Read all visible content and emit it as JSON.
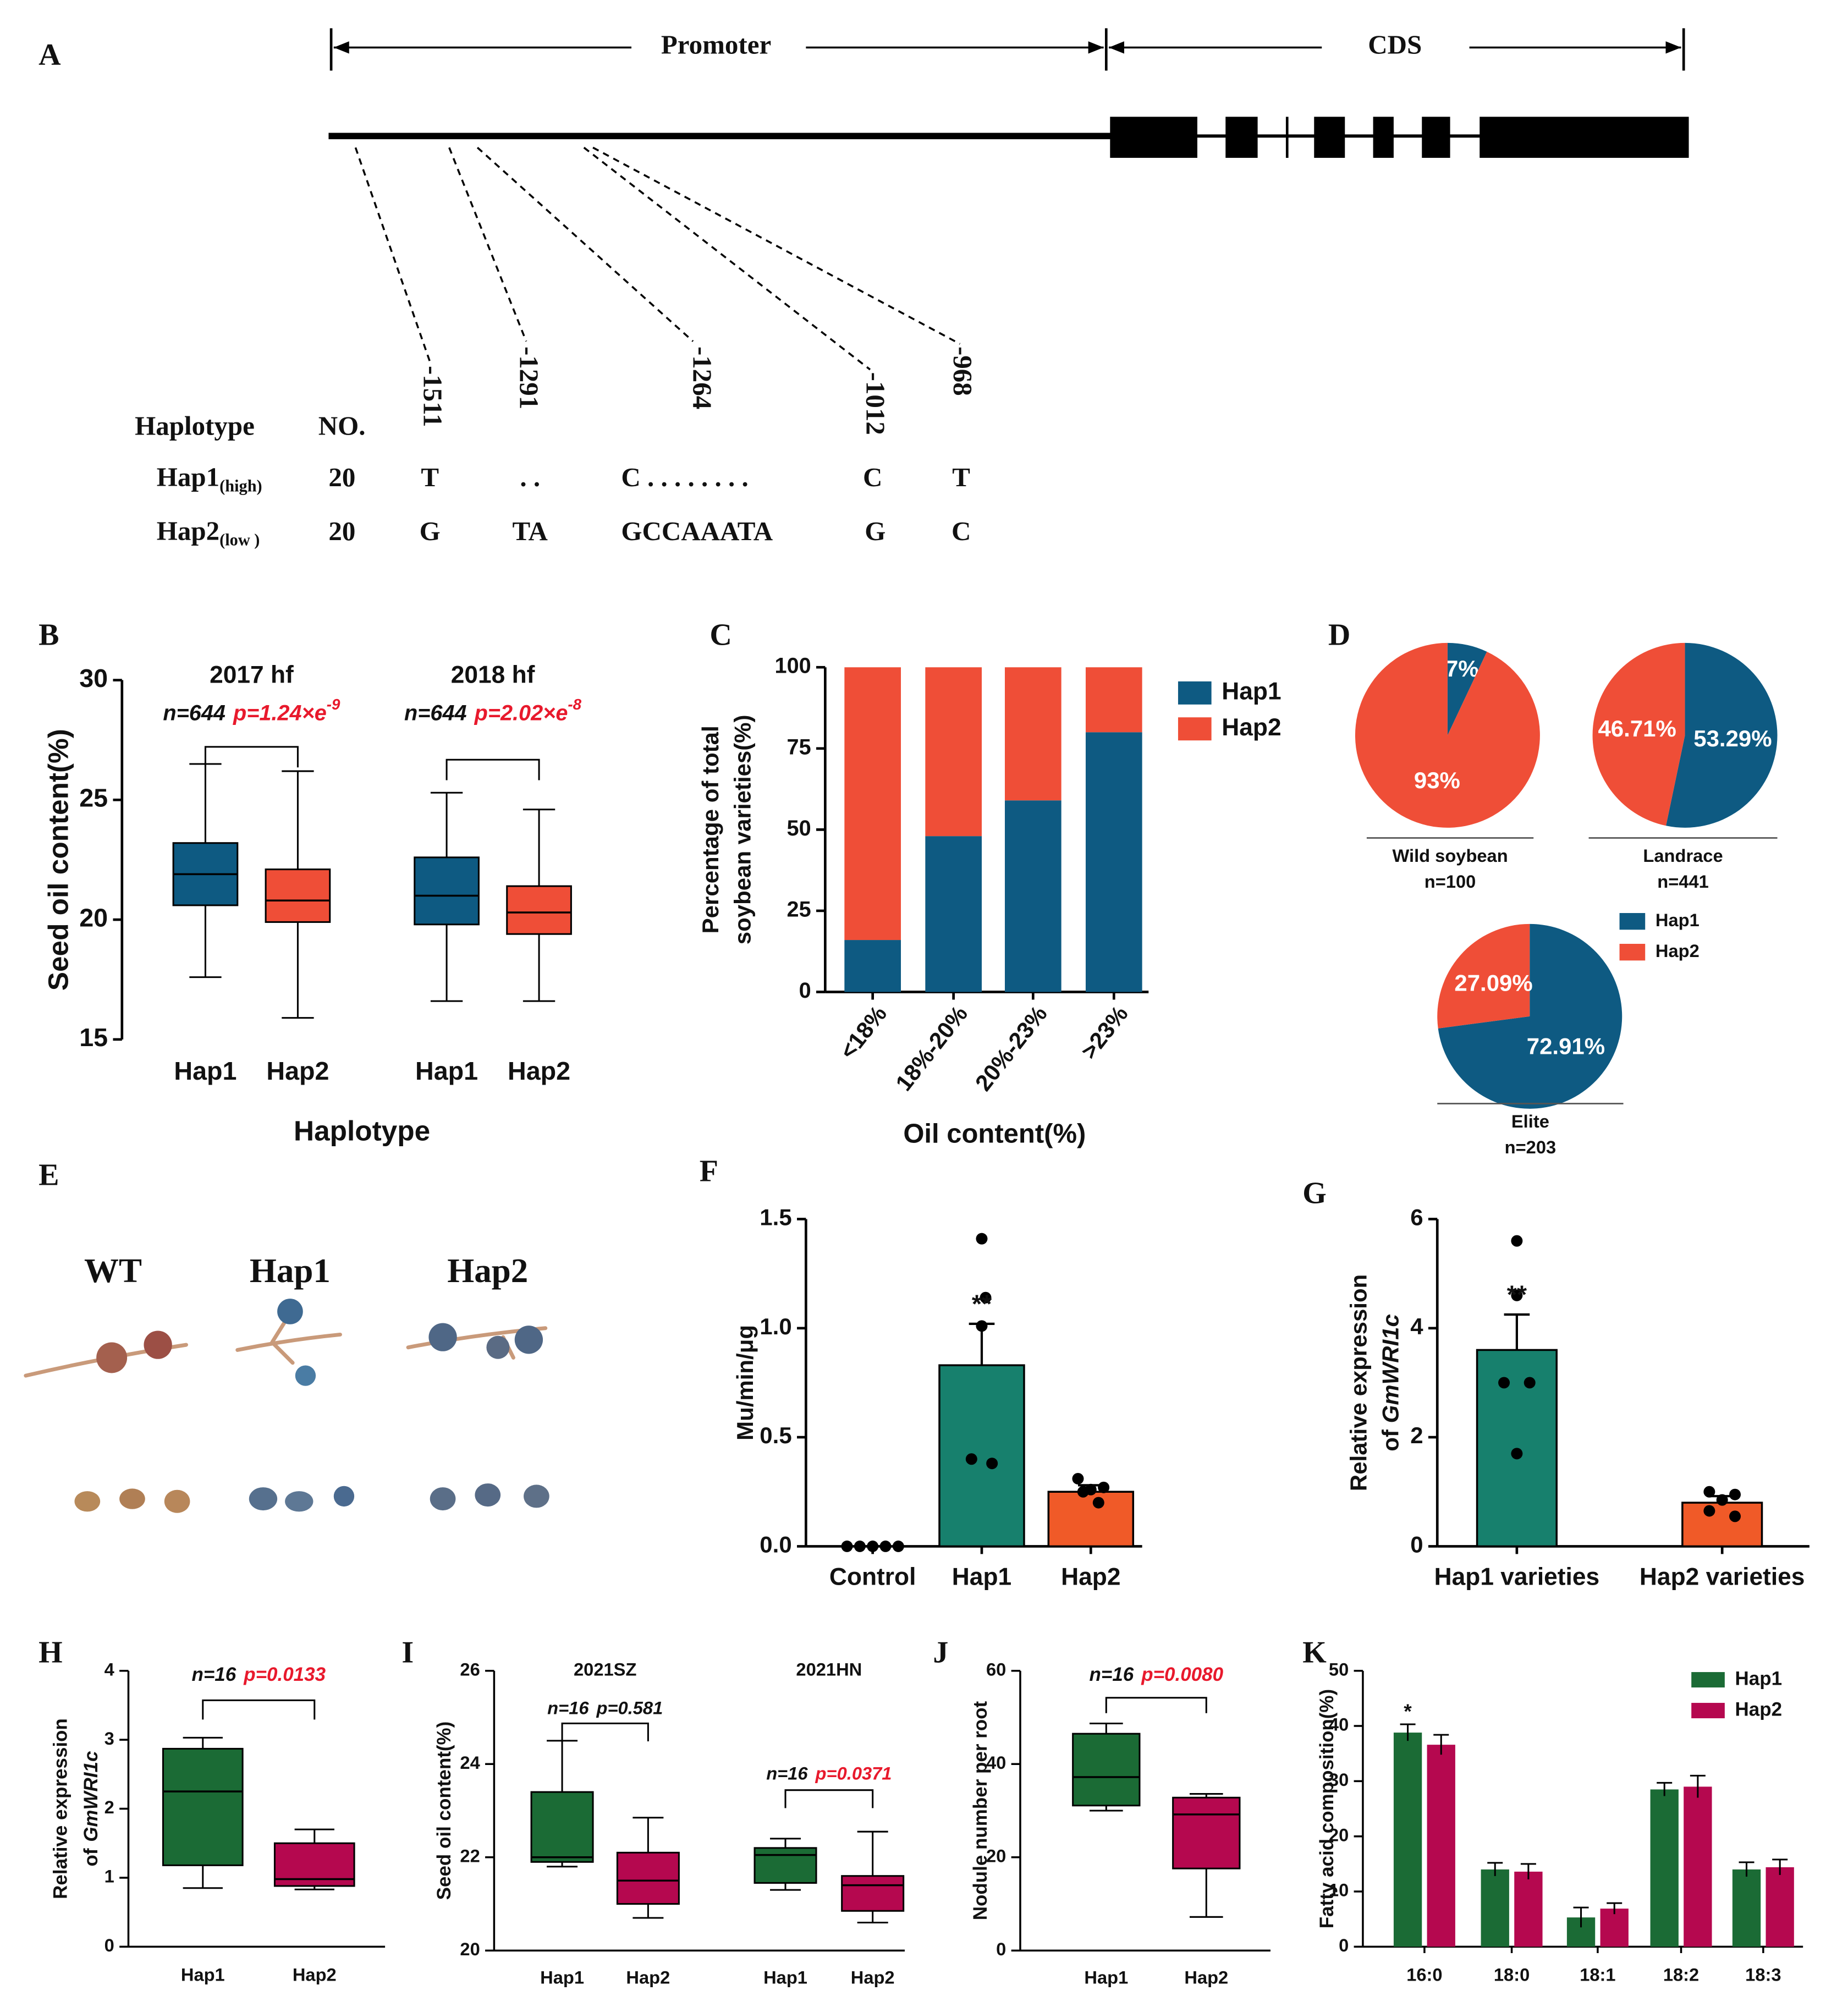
{
  "panels": [
    "A",
    "B",
    "C",
    "D",
    "E",
    "F",
    "G",
    "H",
    "I",
    "J",
    "K"
  ],
  "gene_structure": {
    "promoter": "Promoter",
    "cds": "CDS"
  },
  "haplotype_table": {
    "header": [
      "Haplotype",
      "NO.",
      "-1511",
      "-1291",
      "-1264",
      "-1012",
      "-968"
    ],
    "rows": [
      {
        "haplotype": "Hap1",
        "group": "(high)",
        "cells": [
          "20",
          "T",
          ". .",
          "C . . . . . . . .",
          "C",
          "T"
        ]
      },
      {
        "haplotype": "Hap2",
        "group": "(low )",
        "cells": [
          "20",
          "G",
          "TA",
          "GCCAAATA",
          "G",
          "C"
        ]
      }
    ]
  },
  "nodule_images": {
    "labels": [
      "WT",
      "Hap1",
      "Hap2"
    ]
  },
  "chart_data": [
    {
      "type": "box",
      "ylabel": "Seed oil content(%)",
      "xlabel": "Haplotype",
      "ylim": [
        15,
        30
      ],
      "yticks": [
        15,
        20,
        25,
        30
      ],
      "colors": [
        "#0e5a82",
        "#ef4e37"
      ],
      "groups": [
        {
          "title": "2017 hf",
          "n_label": "n=644",
          "p_label": "p=1.24×e",
          "p_exponent": "-9",
          "p_color": "#e8192c",
          "categories": [
            "Hap1",
            "Hap2"
          ],
          "boxes": [
            {
              "min": 17.6,
              "q1": 20.6,
              "median": 21.9,
              "q3": 23.2,
              "max": 26.5
            },
            {
              "min": 15.9,
              "q1": 19.9,
              "median": 20.8,
              "q3": 22.1,
              "max": 26.2
            }
          ]
        },
        {
          "title": "2018 hf",
          "n_label": "n=644",
          "p_label": "p=2.02×e",
          "p_exponent": "-8",
          "p_color": "#e8192c",
          "categories": [
            "Hap1",
            "Hap2"
          ],
          "boxes": [
            {
              "min": 16.6,
              "q1": 19.8,
              "median": 21.0,
              "q3": 22.6,
              "max": 25.3
            },
            {
              "min": 16.6,
              "q1": 19.4,
              "median": 20.3,
              "q3": 21.4,
              "max": 24.6
            }
          ]
        }
      ]
    },
    {
      "type": "stacked_bar",
      "ylabel": [
        "Percentage of total",
        "soybean varieties(%)"
      ],
      "xlabel": "Oil content(%)",
      "categories": [
        "<18%",
        "18%-20%",
        "20%-23%",
        ">23%"
      ],
      "series": [
        {
          "name": "Hap1",
          "color": "#0e5a82",
          "values": [
            16,
            48,
            59,
            80
          ]
        },
        {
          "name": "Hap2",
          "color": "#ef4e37",
          "values": [
            84,
            52,
            41,
            20
          ]
        }
      ],
      "ylim": [
        0,
        100
      ],
      "yticks": [
        0,
        25,
        50,
        75,
        100
      ],
      "legend": "right"
    },
    {
      "type": "pie",
      "categories": [
        "Hap1",
        "Hap2"
      ],
      "colors": [
        "#0e5a82",
        "#ef4e37"
      ],
      "pies": [
        {
          "title": "Wild soybean",
          "subtitle": "n=100",
          "values": [
            7,
            93
          ],
          "value_labels": [
            "7%",
            "93%"
          ]
        },
        {
          "title": "Landrace",
          "subtitle": "n=441",
          "values": [
            53.29,
            46.71
          ],
          "value_labels": [
            "53.29%",
            "46.71%"
          ]
        },
        {
          "title": "Elite",
          "subtitle": "n=203",
          "values": [
            72.91,
            27.09
          ],
          "value_labels": [
            "72.91%",
            "27.09%"
          ]
        }
      ]
    },
    {
      "type": "bar",
      "ylabel": "Mu/min/μg",
      "categories": [
        "Control",
        "Hap1",
        "Hap2"
      ],
      "colors": [
        "#000000",
        "#17806d",
        "#f05a28"
      ],
      "values": [
        0,
        0.83,
        0.25
      ],
      "errors": [
        0,
        0.19,
        0.03
      ],
      "points": [
        [
          0,
          0,
          0,
          0,
          0
        ],
        [
          1.41,
          1.14,
          1.01,
          0.4,
          0.38
        ],
        [
          0.31,
          0.27,
          0.26,
          0.25,
          0.2
        ]
      ],
      "annotations": [
        null,
        "**",
        null
      ],
      "ylim": [
        0,
        1.5
      ],
      "yticks": [
        {
          "value": 0,
          "label": "0.0"
        },
        {
          "value": 0.5,
          "label": "0.5"
        },
        {
          "value": 1,
          "label": "1.0"
        },
        {
          "value": 1.5,
          "label": "1.5"
        }
      ]
    },
    {
      "type": "bar",
      "ylabel": "Relative expression",
      "ylabel2": "of",
      "ylabel2_italic": "GmWRI1c",
      "categories": [
        "Hap1 varieties",
        "Hap2 varieties"
      ],
      "colors": [
        "#17806d",
        "#f05a28"
      ],
      "values": [
        3.6,
        0.8
      ],
      "errors": [
        0.65,
        0.12
      ],
      "points": [
        [
          5.6,
          4.6,
          3.0,
          3.0,
          1.7
        ],
        [
          1.0,
          0.95,
          0.85,
          0.65,
          0.55
        ]
      ],
      "annotations": [
        "**",
        null
      ],
      "ylim": [
        0,
        6
      ],
      "yticks": [
        0,
        2,
        4,
        6
      ]
    },
    {
      "type": "box",
      "ylabel": "Relative expression",
      "ylabel2": "of",
      "ylabel2_italic": "GmWRI1c",
      "ylim": [
        0,
        4
      ],
      "yticks": [
        0,
        1,
        2,
        3,
        4
      ],
      "colors": [
        "#1b6b35",
        "#b5084f"
      ],
      "groups": [
        {
          "n_label": "n=16",
          "p_label": "p=0.0133",
          "p_color": "#e8192c",
          "categories": [
            "Hap1",
            "Hap2"
          ],
          "boxes": [
            {
              "min": 0.85,
              "q1": 1.18,
              "median": 2.25,
              "q3": 2.87,
              "max": 3.03
            },
            {
              "min": 0.83,
              "q1": 0.88,
              "median": 0.98,
              "q3": 1.5,
              "max": 1.7
            }
          ]
        }
      ]
    },
    {
      "type": "box",
      "ylabel": "Seed oil content(%)",
      "ylim": [
        20,
        26
      ],
      "yticks": [
        20,
        22,
        24,
        26
      ],
      "colors": [
        "#1b6b35",
        "#b5084f"
      ],
      "groups": [
        {
          "title": "2021SZ",
          "n_label": "n=16",
          "p_label": "p=0.581",
          "p_color": "#111111",
          "categories": [
            "Hap1",
            "Hap2"
          ],
          "boxes": [
            {
              "min": 21.8,
              "q1": 21.9,
              "median": 22.0,
              "q3": 23.4,
              "max": 24.5
            },
            {
              "min": 20.7,
              "q1": 21.0,
              "median": 21.5,
              "q3": 22.1,
              "max": 22.85
            }
          ]
        },
        {
          "title": "2021HN",
          "n_label": "n=16",
          "p_label": "p=0.0371",
          "p_color": "#e8192c",
          "categories": [
            "Hap1",
            "Hap2"
          ],
          "boxes": [
            {
              "min": 21.3,
              "q1": 21.45,
              "median": 22.05,
              "q3": 22.2,
              "max": 22.4
            },
            {
              "min": 20.6,
              "q1": 20.85,
              "median": 21.4,
              "q3": 21.6,
              "max": 22.55
            }
          ]
        }
      ]
    },
    {
      "type": "box",
      "ylabel": "Nodule number per root",
      "ylim": [
        0,
        60
      ],
      "yticks": [
        0,
        20,
        40,
        60
      ],
      "colors": [
        "#1b6b35",
        "#b5084f"
      ],
      "groups": [
        {
          "n_label": "n=16",
          "p_label": "p=0.0080",
          "p_color": "#e8192c",
          "categories": [
            "Hap1",
            "Hap2"
          ],
          "boxes": [
            {
              "min": 30,
              "q1": 31.1,
              "median": 37.2,
              "q3": 46.5,
              "max": 48.7
            },
            {
              "min": 7.2,
              "q1": 17.6,
              "median": 29.2,
              "q3": 32.8,
              "max": 33.6
            }
          ]
        }
      ]
    },
    {
      "type": "grouped_bar",
      "ylabel": "Fatty acid composition(%)",
      "categories": [
        "16:0",
        "18:0",
        "18:1",
        "18:2",
        "18:3"
      ],
      "series": [
        {
          "name": "Hap1",
          "color": "#1b6b35",
          "values": [
            38.8,
            14.0,
            5.3,
            28.5,
            14.0
          ],
          "errors": [
            1.5,
            1.2,
            1.8,
            1.2,
            1.3
          ],
          "annotations": [
            "*",
            null,
            null,
            null,
            null
          ]
        },
        {
          "name": "Hap2",
          "color": "#b5084f",
          "values": [
            36.6,
            13.6,
            6.9,
            29.0,
            14.4
          ],
          "errors": [
            1.8,
            1.4,
            1.0,
            2.0,
            1.4
          ],
          "annotations": [
            null,
            null,
            null,
            null,
            null
          ]
        }
      ],
      "ylim": [
        0,
        50
      ],
      "yticks": [
        0,
        10,
        20,
        30,
        40,
        50
      ],
      "legend": "upper right"
    }
  ]
}
